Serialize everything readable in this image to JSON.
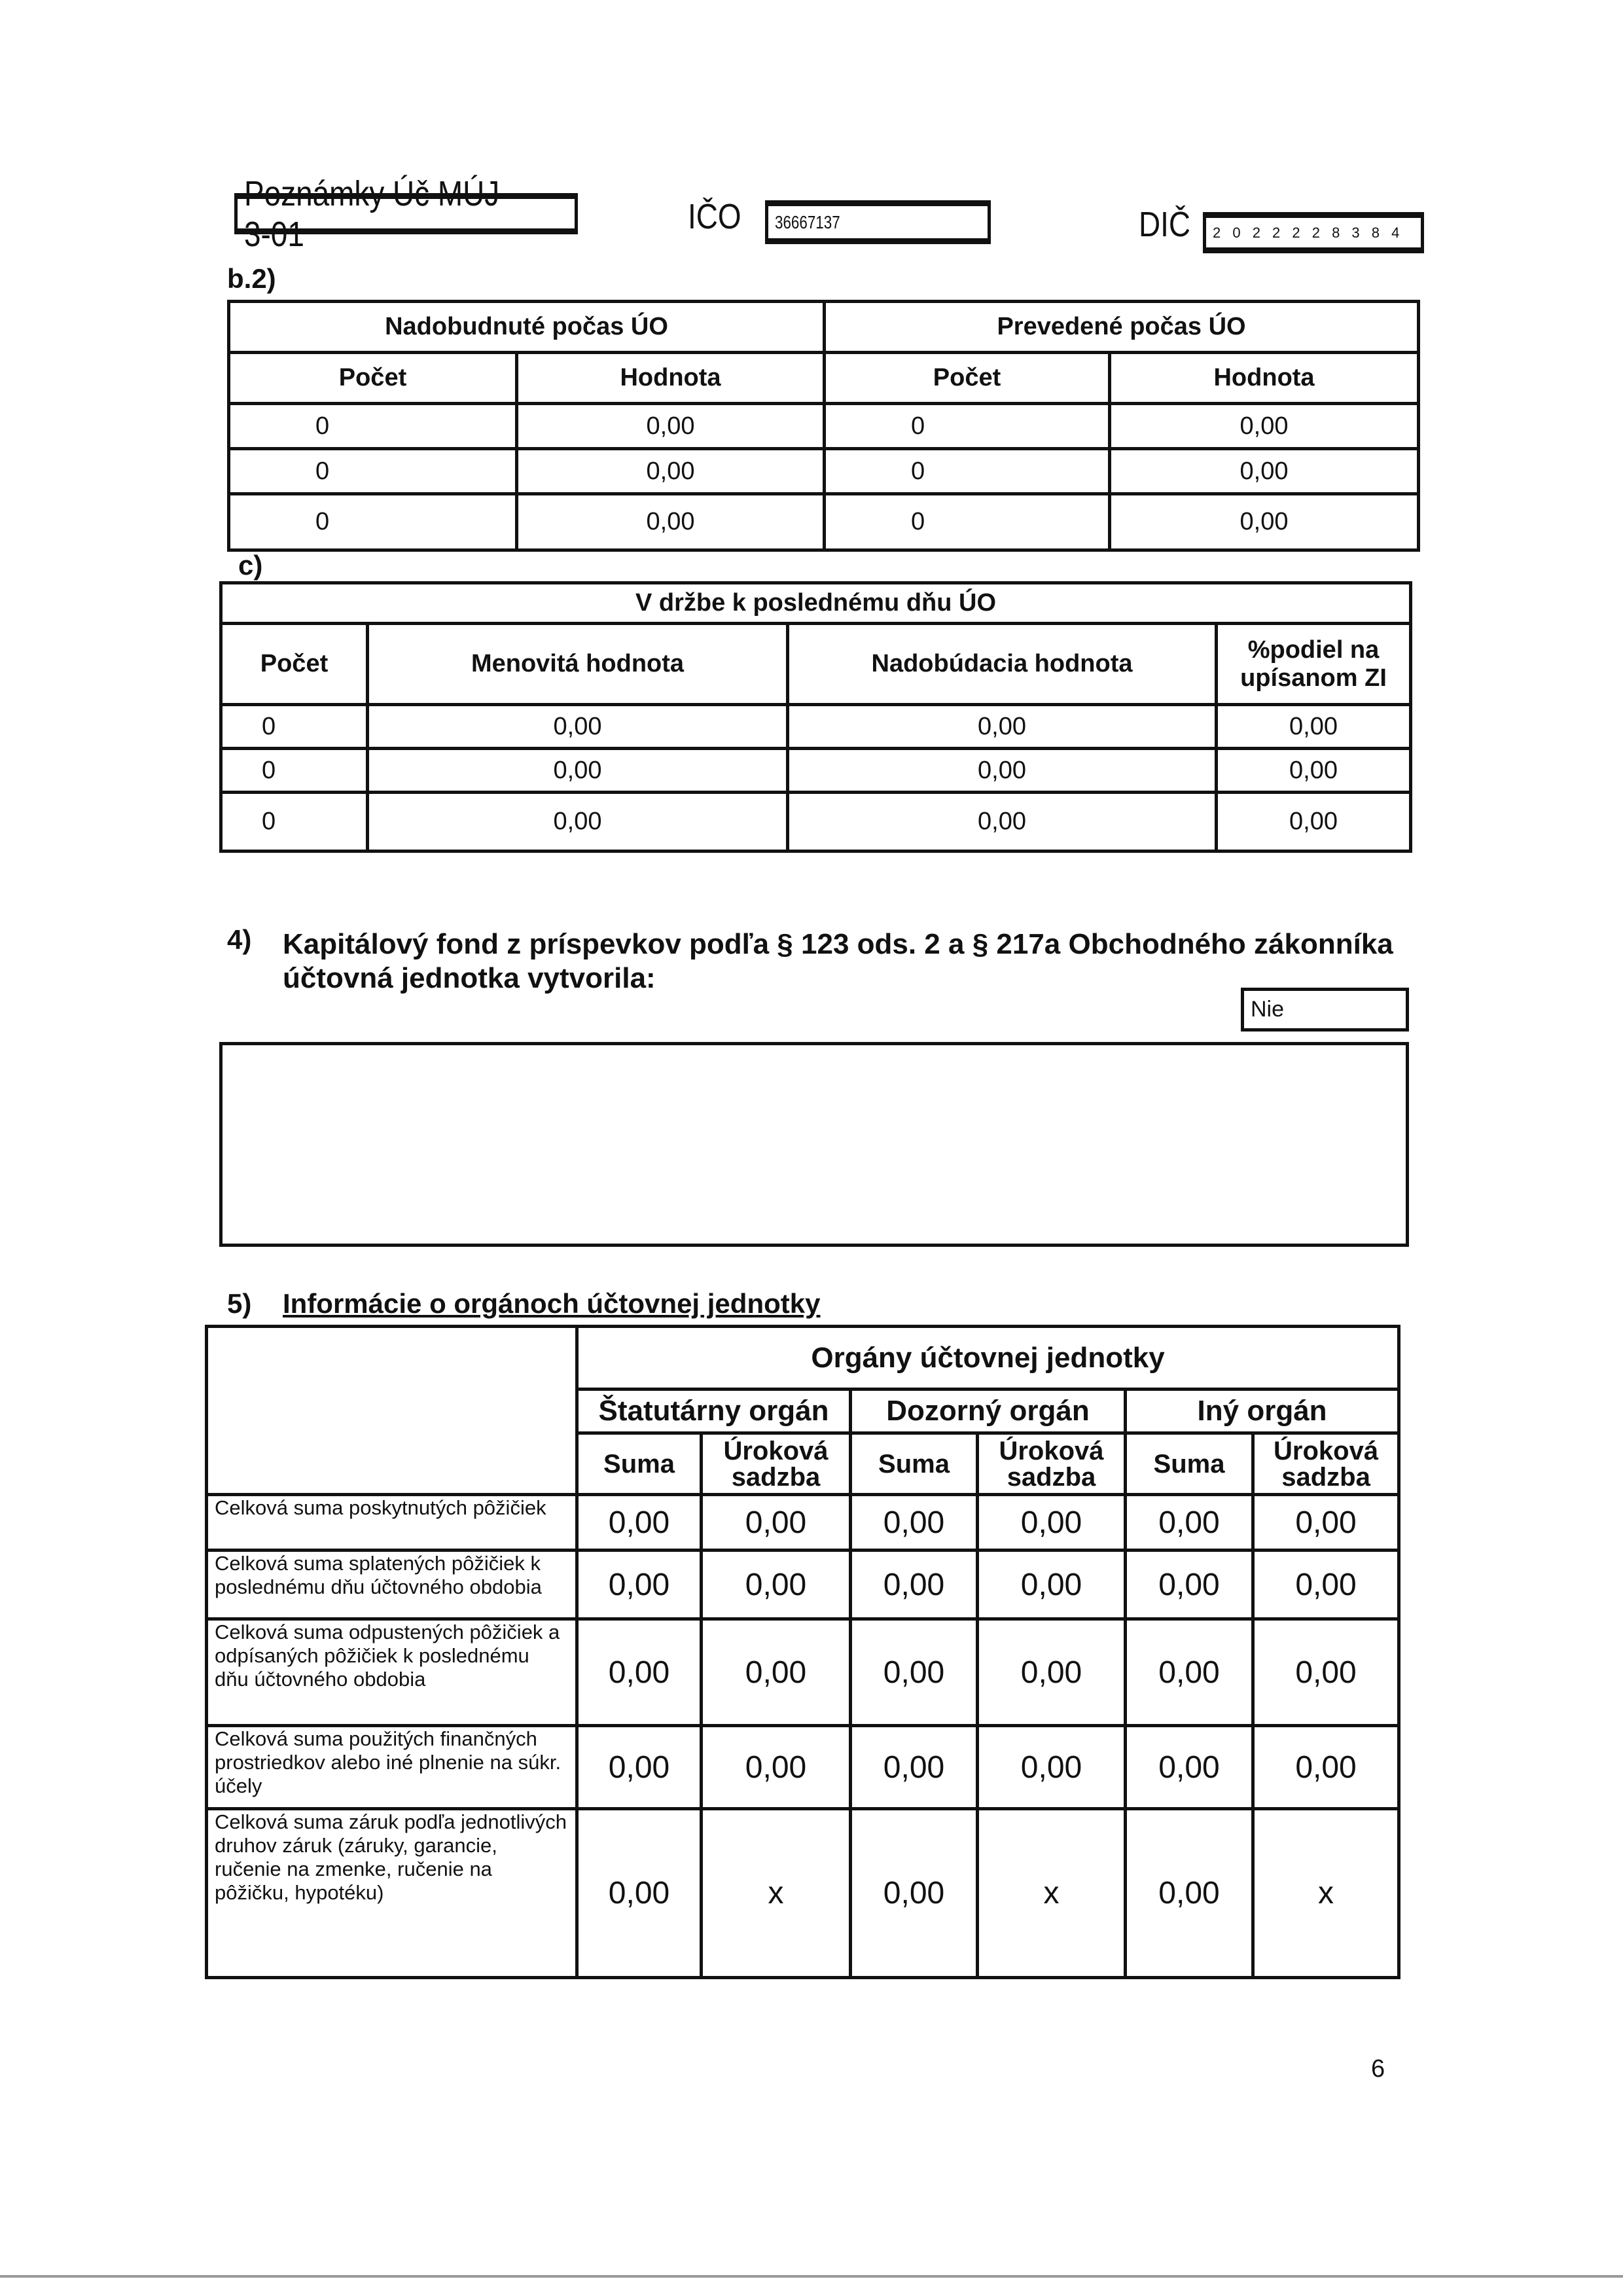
{
  "header": {
    "form_title": "Poznámky Úč MÚJ 3-01",
    "ico_label": "IČO",
    "ico_value": "36667137",
    "dic_label": "DIČ",
    "dic_value": "2 0 2 2 2 2 8 3 8 4"
  },
  "b2": {
    "label": "b.2)",
    "group_headers": [
      "Nadobudnuté počas ÚO",
      "Prevedené počas ÚO"
    ],
    "columns": [
      "Počet",
      "Hodnota",
      "Počet",
      "Hodnota"
    ],
    "rows": [
      [
        "0",
        "0,00",
        "0",
        "0,00"
      ],
      [
        "0",
        "0,00",
        "0",
        "0,00"
      ],
      [
        "0",
        "0,00",
        "0",
        "0,00"
      ]
    ]
  },
  "c": {
    "label": "c)",
    "group_header": "V držbe k poslednému dňu ÚO",
    "columns": [
      "Počet",
      "Menovitá hodnota",
      "Nadobúdacia hodnota",
      "%podiel na upísanom ZI"
    ],
    "rows": [
      [
        "0",
        "0,00",
        "0,00",
        "0,00"
      ],
      [
        "0",
        "0,00",
        "0,00",
        "0,00"
      ],
      [
        "0",
        "0,00",
        "0,00",
        "0,00"
      ]
    ]
  },
  "s4": {
    "number": "4)",
    "line1": "Kapitálový fond z príspevkov podľa § 123 ods. 2 a § 217a Obchodného zákonníka",
    "line2": "účtovná jednotka vytvorila:",
    "answer": "Nie",
    "note": ""
  },
  "s5": {
    "number": "5)",
    "title": "Informácie o orgánoch účtovnej jednotky",
    "group_header": "Orgány účtovnej jednotky",
    "organs": [
      "Štatutárny orgán",
      "Dozorný orgán",
      "Iný orgán"
    ],
    "sub": [
      "Suma",
      "Úroková sadzba"
    ],
    "rows": [
      {
        "label": "Celková suma poskytnutých pôžičiek",
        "values": [
          "0,00",
          "0,00",
          "0,00",
          "0,00",
          "0,00",
          "0,00"
        ]
      },
      {
        "label": "Celková suma splatených pôžičiek k poslednému dňu účtovného obdobia",
        "values": [
          "0,00",
          "0,00",
          "0,00",
          "0,00",
          "0,00",
          "0,00"
        ]
      },
      {
        "label": "Celková suma odpustených pôžičiek a odpísaných pôžičiek k poslednému dňu účtovného obdobia",
        "values": [
          "0,00",
          "0,00",
          "0,00",
          "0,00",
          "0,00",
          "0,00"
        ]
      },
      {
        "label": "Celková suma použitých finančných prostriedkov alebo iné plnenie na súkr. účely",
        "values": [
          "0,00",
          "0,00",
          "0,00",
          "0,00",
          "0,00",
          "0,00"
        ]
      },
      {
        "label": "Celková suma záruk podľa jednotlivých druhov záruk (záruky, garancie, ručenie na zmenke, ručenie na pôžičku, hypotéku)",
        "values": [
          "0,00",
          "x",
          "0,00",
          "x",
          "0,00",
          "x"
        ]
      }
    ]
  },
  "page_number": "6"
}
